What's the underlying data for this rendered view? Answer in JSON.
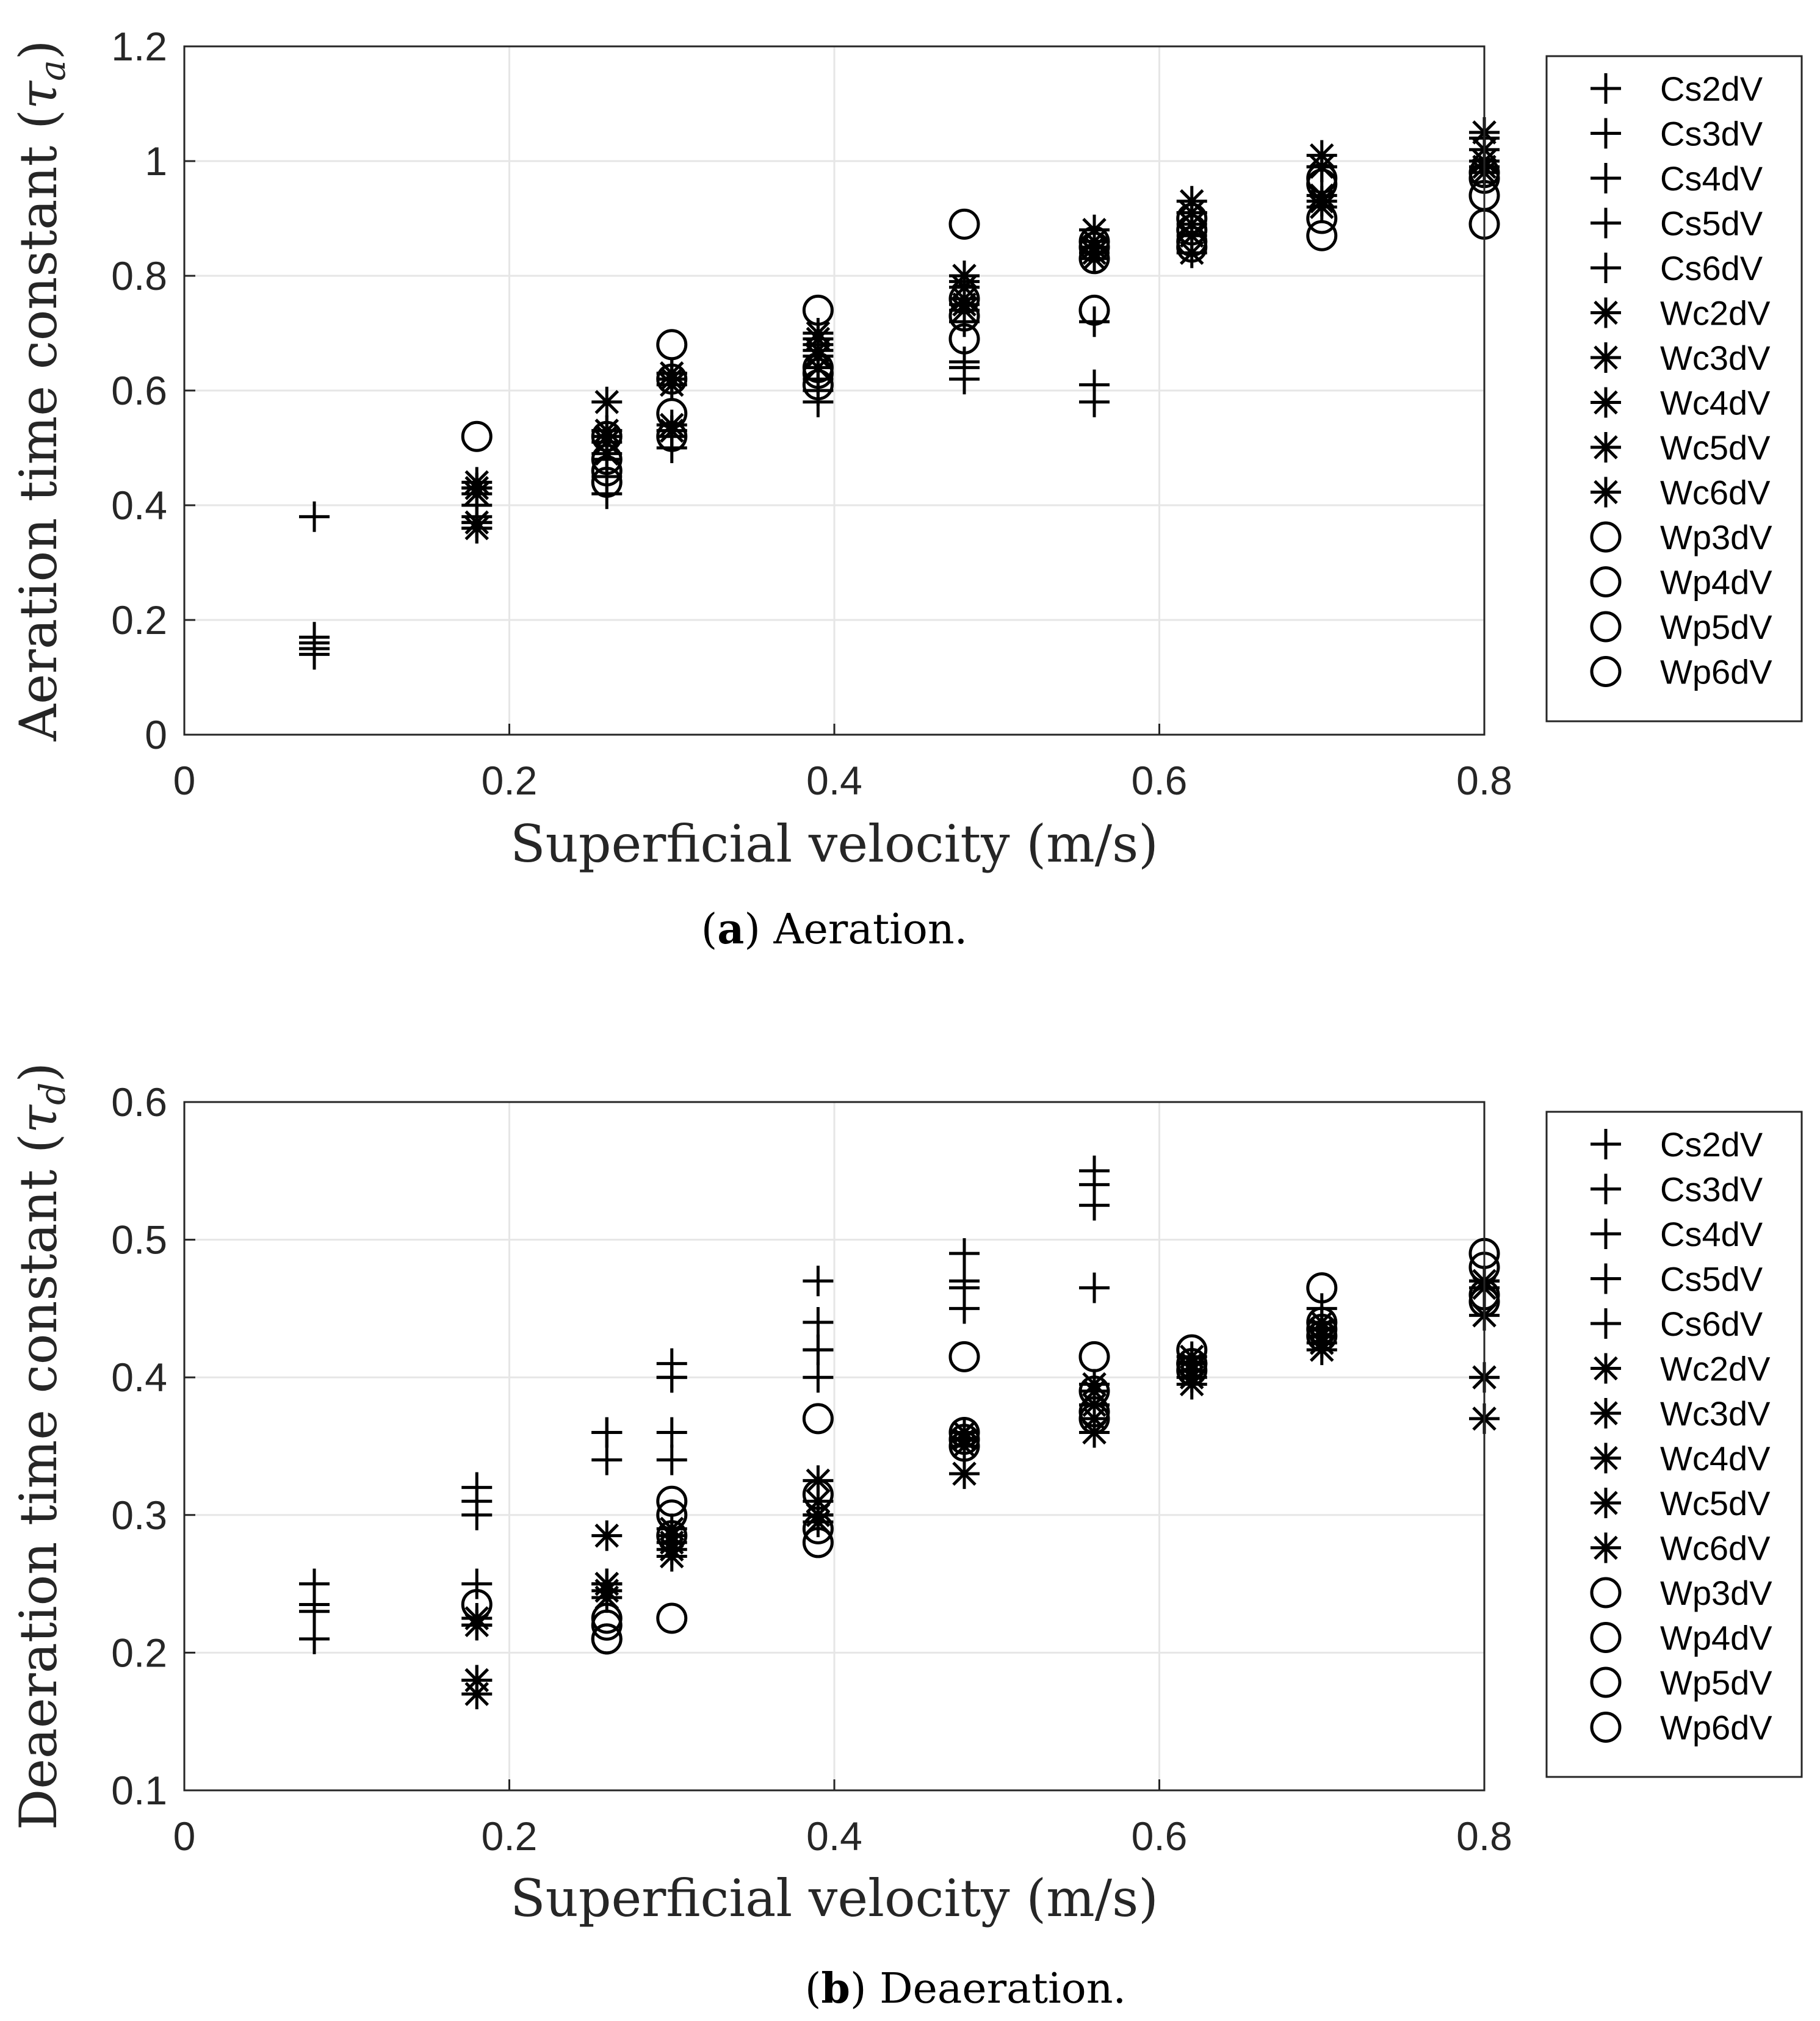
{
  "chart_data": [
    {
      "type": "scatter",
      "panel": "a",
      "caption_letter": "a",
      "caption_text": " Aeration.",
      "xlabel": "Superficial velocity (m/s)",
      "ylabel": "Aeration time constant (τa)",
      "ylabel_main": "Aeration time constant (",
      "ylabel_sym": "τ",
      "ylabel_sub": "a",
      "ylabel_close": ")",
      "xlim": [
        0,
        0.8
      ],
      "ylim": [
        0,
        1.2
      ],
      "xticks": [
        0,
        0.2,
        0.4,
        0.6,
        0.8
      ],
      "xtick_labels": [
        "0",
        "0.2",
        "0.4",
        "0.6",
        "0.8"
      ],
      "yticks": [
        0,
        0.2,
        0.4,
        0.6,
        0.8,
        1.0,
        1.2
      ],
      "ytick_labels": [
        "0",
        "0.2",
        "0.4",
        "0.6",
        "0.8",
        "1",
        "1.2"
      ],
      "grid": true,
      "legend_position": "outside-right",
      "series": [
        {
          "name": "Cs2dV",
          "marker": "plus",
          "x": [
            0.08,
            0.18,
            0.26,
            0.3,
            0.39,
            0.48,
            0.56
          ],
          "y": [
            0.38,
            0.37,
            0.42,
            0.5,
            0.58,
            0.64,
            0.72
          ]
        },
        {
          "name": "Cs3dV",
          "marker": "plus",
          "x": [
            0.08,
            0.18,
            0.26,
            0.3,
            0.39,
            0.48,
            0.56
          ],
          "y": [
            0.14,
            0.36,
            0.45,
            0.52,
            0.6,
            0.62,
            0.61
          ]
        },
        {
          "name": "Cs4dV",
          "marker": "plus",
          "x": [
            0.08,
            0.18,
            0.26,
            0.3,
            0.39,
            0.48,
            0.56
          ],
          "y": [
            0.16,
            0.38,
            0.48,
            0.53,
            0.62,
            0.65,
            0.58
          ]
        },
        {
          "name": "Cs5dV",
          "marker": "plus",
          "x": [
            0.08,
            0.18,
            0.26,
            0.3,
            0.39,
            0.48,
            0.56
          ],
          "y": [
            0.15,
            0.4,
            0.52,
            0.62,
            0.64,
            0.72,
            0.85
          ]
        },
        {
          "name": "Cs6dV",
          "marker": "plus",
          "x": [
            0.08,
            0.18,
            0.26,
            0.3,
            0.39,
            0.48,
            0.56,
            0.62,
            0.7,
            0.8
          ],
          "y": [
            0.17,
            0.43,
            0.53,
            0.63,
            0.68,
            0.79,
            0.86,
            0.91,
            0.99,
            1.04
          ]
        },
        {
          "name": "Wc2dV",
          "marker": "star",
          "x": [
            0.18,
            0.26,
            0.3,
            0.39,
            0.48,
            0.56,
            0.62,
            0.7,
            0.8
          ],
          "y": [
            0.36,
            0.58,
            0.54,
            0.66,
            0.8,
            0.88,
            0.93,
            1.01,
            1.05
          ]
        },
        {
          "name": "Wc3dV",
          "marker": "star",
          "x": [
            0.18,
            0.26,
            0.3,
            0.39,
            0.48,
            0.56,
            0.62,
            0.7,
            0.8
          ],
          "y": [
            0.37,
            0.53,
            0.53,
            0.67,
            0.76,
            0.86,
            0.91,
            0.99,
            1.02
          ]
        },
        {
          "name": "Wc4dV",
          "marker": "star",
          "x": [
            0.18,
            0.26,
            0.3,
            0.39,
            0.48,
            0.56,
            0.62,
            0.7,
            0.8
          ],
          "y": [
            0.43,
            0.52,
            0.61,
            0.69,
            0.75,
            0.85,
            0.89,
            0.94,
            1.0
          ]
        },
        {
          "name": "Wc5dV",
          "marker": "star",
          "x": [
            0.18,
            0.26,
            0.3,
            0.39,
            0.48,
            0.56,
            0.62,
            0.7,
            0.8
          ],
          "y": [
            0.44,
            0.49,
            0.62,
            0.64,
            0.78,
            0.84,
            0.87,
            0.92,
            0.99
          ]
        },
        {
          "name": "Wc6dV",
          "marker": "star",
          "x": [
            0.18,
            0.26,
            0.3,
            0.39,
            0.48,
            0.56,
            0.62,
            0.7,
            0.8
          ],
          "y": [
            0.42,
            0.51,
            0.63,
            0.7,
            0.74,
            0.83,
            0.84,
            0.93,
            0.98
          ]
        },
        {
          "name": "Wp3dV",
          "marker": "circle",
          "x": [
            0.18,
            0.26,
            0.3,
            0.39,
            0.48,
            0.56,
            0.62,
            0.7,
            0.8
          ],
          "y": [
            0.52,
            0.48,
            0.68,
            0.74,
            0.89,
            0.74,
            0.85,
            0.87,
            0.89
          ]
        },
        {
          "name": "Wp4dV",
          "marker": "circle",
          "x": [
            0.26,
            0.3,
            0.39,
            0.48,
            0.56,
            0.62,
            0.7,
            0.8
          ],
          "y": [
            0.46,
            0.62,
            0.64,
            0.69,
            0.83,
            0.88,
            0.9,
            0.94
          ]
        },
        {
          "name": "Wp5dV",
          "marker": "circle",
          "x": [
            0.26,
            0.3,
            0.39,
            0.48,
            0.56,
            0.62,
            0.7,
            0.8
          ],
          "y": [
            0.52,
            0.56,
            0.61,
            0.73,
            0.85,
            0.86,
            0.96,
            0.97
          ]
        },
        {
          "name": "Wp6dV",
          "marker": "circle",
          "x": [
            0.26,
            0.3,
            0.39,
            0.48,
            0.56,
            0.62,
            0.7,
            0.8
          ],
          "y": [
            0.44,
            0.52,
            0.63,
            0.76,
            0.86,
            0.9,
            0.97,
            0.98
          ]
        }
      ]
    },
    {
      "type": "scatter",
      "panel": "b",
      "caption_letter": "b",
      "caption_text": " Deaeration.",
      "xlabel": "Superficial velocity (m/s)",
      "ylabel": "Deaeration time constant (τd)",
      "ylabel_main": "Deaeration time constant (",
      "ylabel_sym": "τ",
      "ylabel_sub": "d",
      "ylabel_close": ")",
      "xlim": [
        0,
        0.8
      ],
      "ylim": [
        0.1,
        0.6
      ],
      "xticks": [
        0,
        0.2,
        0.4,
        0.6,
        0.8
      ],
      "xtick_labels": [
        "0",
        "0.2",
        "0.4",
        "0.6",
        "0.8"
      ],
      "yticks": [
        0.1,
        0.2,
        0.3,
        0.4,
        0.5,
        0.6
      ],
      "ytick_labels": [
        "0.1",
        "0.2",
        "0.3",
        "0.4",
        "0.5",
        "0.6"
      ],
      "grid": true,
      "legend_position": "outside-right",
      "series": [
        {
          "name": "Cs2dV",
          "marker": "plus",
          "x": [
            0.08,
            0.18,
            0.26,
            0.3,
            0.39,
            0.48,
            0.56
          ],
          "y": [
            0.25,
            0.32,
            0.36,
            0.41,
            0.47,
            0.49,
            0.55
          ]
        },
        {
          "name": "Cs3dV",
          "marker": "plus",
          "x": [
            0.08,
            0.18,
            0.26,
            0.3,
            0.39,
            0.48,
            0.56
          ],
          "y": [
            0.23,
            0.31,
            0.36,
            0.4,
            0.44,
            0.47,
            0.54
          ]
        },
        {
          "name": "Cs4dV",
          "marker": "plus",
          "x": [
            0.08,
            0.18,
            0.26,
            0.3,
            0.39,
            0.48,
            0.56
          ],
          "y": [
            0.21,
            0.3,
            0.34,
            0.36,
            0.42,
            0.465,
            0.525
          ]
        },
        {
          "name": "Cs5dV",
          "marker": "plus",
          "x": [
            0.08,
            0.18,
            0.26,
            0.3,
            0.39,
            0.48,
            0.56
          ],
          "y": [
            0.235,
            0.25,
            0.36,
            0.34,
            0.4,
            0.45,
            0.465
          ]
        },
        {
          "name": "Cs6dV",
          "marker": "plus",
          "x": [
            0.18,
            0.26,
            0.3,
            0.39,
            0.48,
            0.56,
            0.62,
            0.7,
            0.8
          ],
          "y": [
            0.22,
            0.25,
            0.4,
            0.42,
            0.36,
            0.38,
            0.41,
            0.45,
            0.47
          ]
        },
        {
          "name": "Wc2dV",
          "marker": "star",
          "x": [
            0.18,
            0.26,
            0.3,
            0.39,
            0.48,
            0.56,
            0.62,
            0.7,
            0.8
          ],
          "y": [
            0.17,
            0.285,
            0.27,
            0.325,
            0.33,
            0.36,
            0.395,
            0.42,
            0.37
          ]
        },
        {
          "name": "Wc3dV",
          "marker": "star",
          "x": [
            0.18,
            0.26,
            0.3,
            0.39,
            0.48,
            0.56,
            0.62,
            0.7,
            0.8
          ],
          "y": [
            0.18,
            0.25,
            0.28,
            0.3,
            0.35,
            0.37,
            0.4,
            0.43,
            0.4
          ]
        },
        {
          "name": "Wc4dV",
          "marker": "star",
          "x": [
            0.18,
            0.26,
            0.3,
            0.39,
            0.48,
            0.56,
            0.62,
            0.7,
            0.8
          ],
          "y": [
            0.22,
            0.245,
            0.285,
            0.31,
            0.355,
            0.38,
            0.405,
            0.425,
            0.445
          ]
        },
        {
          "name": "Wc5dV",
          "marker": "star",
          "x": [
            0.18,
            0.26,
            0.3,
            0.39,
            0.48,
            0.56,
            0.62,
            0.7,
            0.8
          ],
          "y": [
            0.225,
            0.24,
            0.29,
            0.295,
            0.36,
            0.39,
            0.41,
            0.435,
            0.465
          ]
        },
        {
          "name": "Wc6dV",
          "marker": "star",
          "x": [
            0.18,
            0.26,
            0.3,
            0.39,
            0.48,
            0.56,
            0.62,
            0.7,
            0.8
          ],
          "y": [
            0.18,
            0.25,
            0.275,
            0.3,
            0.36,
            0.395,
            0.415,
            0.44,
            0.47
          ]
        },
        {
          "name": "Wp3dV",
          "marker": "circle",
          "x": [
            0.18,
            0.26,
            0.3,
            0.39,
            0.48,
            0.56,
            0.62,
            0.7,
            0.8
          ],
          "y": [
            0.235,
            0.21,
            0.225,
            0.37,
            0.415,
            0.415,
            0.42,
            0.465,
            0.49
          ]
        },
        {
          "name": "Wp4dV",
          "marker": "circle",
          "x": [
            0.26,
            0.3,
            0.39,
            0.48,
            0.56,
            0.62,
            0.7,
            0.8
          ],
          "y": [
            0.22,
            0.31,
            0.315,
            0.36,
            0.39,
            0.41,
            0.43,
            0.48
          ]
        },
        {
          "name": "Wp5dV",
          "marker": "circle",
          "x": [
            0.26,
            0.3,
            0.39,
            0.48,
            0.56,
            0.62,
            0.7,
            0.8
          ],
          "y": [
            0.225,
            0.3,
            0.28,
            0.355,
            0.37,
            0.405,
            0.435,
            0.455
          ]
        },
        {
          "name": "Wp6dV",
          "marker": "circle",
          "x": [
            0.26,
            0.3,
            0.39,
            0.48,
            0.56,
            0.62,
            0.7,
            0.8
          ],
          "y": [
            0.21,
            0.285,
            0.29,
            0.35,
            0.375,
            0.41,
            0.44,
            0.46
          ]
        }
      ]
    }
  ]
}
